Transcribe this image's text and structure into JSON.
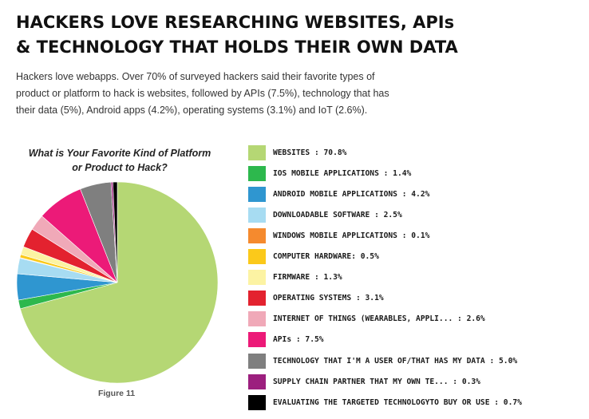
{
  "title_line1": "HACKERS LOVE RESEARCHING WEBSITES, APIs",
  "title_line2": "& TECHNOLOGY THAT HOLDS THEIR OWN DATA",
  "intro_line1": "Hackers love webapps. Over 70% of surveyed hackers said their favorite types of",
  "intro_line2": "product or platform to hack is websites, followed by APIs (7.5%), technology that has",
  "intro_line3": "their data (5%), Android apps (4.2%), operating systems (3.1%) and IoT (2.6%).",
  "figure_caption": "Figure 11",
  "chart_data": {
    "type": "pie",
    "title_line1": "What is Your Favorite Kind of Platform",
    "title_line2": "or Product to Hack?",
    "legend_position": "right",
    "slices": [
      {
        "label": "WEBSITES : 70.8%",
        "value": 70.8,
        "color": "#b5d774"
      },
      {
        "label": "IOS MOBILE APPLICATIONS : 1.4%",
        "value": 1.4,
        "color": "#2db84d"
      },
      {
        "label": "ANDROID MOBILE APPLICATIONS : 4.2%",
        "value": 4.2,
        "color": "#2f96d0"
      },
      {
        "label": "DOWNLOADABLE SOFTWARE : 2.5%",
        "value": 2.5,
        "color": "#a7dcf2"
      },
      {
        "label": "WINDOWS MOBILE APPLICATIONS : 0.1%",
        "value": 0.1,
        "color": "#f58a2e"
      },
      {
        "label": "COMPUTER HARDWARE: 0.5%",
        "value": 0.5,
        "color": "#fbc91a"
      },
      {
        "label": "FIRMWARE : 1.3%",
        "value": 1.3,
        "color": "#fcf3a3"
      },
      {
        "label": "OPERATING SYSTEMS : 3.1%",
        "value": 3.1,
        "color": "#e3222f"
      },
      {
        "label": "INTERNET OF THINGS (WEARABLES, APPLI... : 2.6%",
        "value": 2.6,
        "color": "#f0a9b8"
      },
      {
        "label": "APIs : 7.5%",
        "value": 7.5,
        "color": "#ec1a78"
      },
      {
        "label": "TECHNOLOGY THAT I'M A USER OF/THAT HAS MY DATA : 5.0%",
        "value": 5.0,
        "color": "#7f7f7f"
      },
      {
        "label": "SUPPLY CHAIN PARTNER THAT MY OWN TE... : 0.3%",
        "value": 0.3,
        "color": "#9c1f7e"
      },
      {
        "label": "EVALUATING THE TARGETED TECHNOLOGYTO BUY OR USE : 0.7%",
        "value": 0.7,
        "color": "#000000"
      }
    ]
  }
}
